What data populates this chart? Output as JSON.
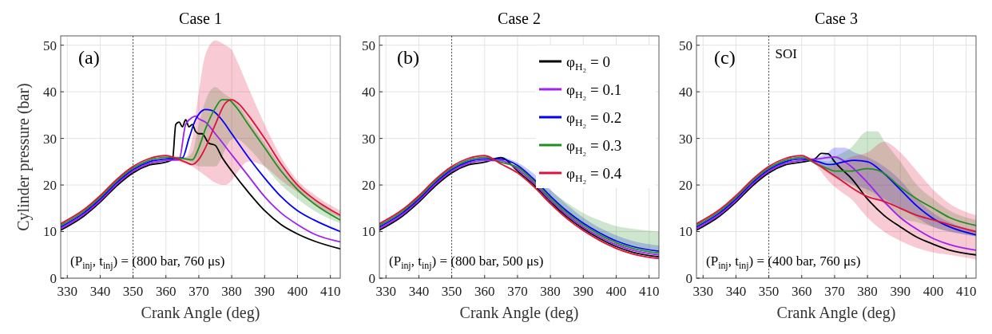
{
  "chart_data": [
    {
      "type": "line",
      "title": "Case 1",
      "xlabel": "Crank Angle (deg)",
      "ylabel": "Cylinder pressure (bar)",
      "annotations": [
        "(a)",
        "(P$_{inj}$, t$_{inj}$) = (800 bar, 760 μs)"
      ],
      "xlim": [
        328,
        413
      ],
      "ylim": [
        0,
        52
      ],
      "xticks": [
        330,
        340,
        350,
        360,
        370,
        380,
        390,
        400,
        410
      ],
      "yticks": [
        0,
        10,
        20,
        30,
        40,
        50
      ],
      "grid": true,
      "line_style": "solid",
      "ref_lines": [
        {
          "axis": "x",
          "value": 350,
          "line_style": "dotted"
        }
      ],
      "series": [
        {
          "color": "#000000",
          "x": [
            328,
            335,
            340,
            345,
            350,
            355,
            360,
            362,
            363,
            364,
            365,
            366,
            367,
            368,
            369,
            370,
            371,
            373,
            375,
            377,
            380,
            385,
            390,
            395,
            400,
            405,
            413
          ],
          "values": [
            10.3,
            13.3,
            16.3,
            19.8,
            22.6,
            24.3,
            24.9,
            25.5,
            33,
            33.5,
            32.5,
            34,
            32.5,
            33,
            31.5,
            31,
            31,
            29,
            28.5,
            26,
            23,
            18.5,
            14.5,
            11.5,
            9.5,
            8,
            6.3
          ]
        },
        {
          "color": "#a020f0",
          "x": [
            328,
            335,
            340,
            345,
            350,
            355,
            360,
            364,
            366,
            368,
            369,
            370,
            372,
            375,
            380,
            385,
            390,
            395,
            400,
            405,
            413
          ],
          "values": [
            10.65,
            13.65,
            16.65,
            20.15,
            22.95,
            24.65,
            25.25,
            25.4,
            33,
            34.5,
            34.8,
            34.2,
            33.5,
            31,
            26.5,
            22,
            17.5,
            14,
            11.5,
            9.5,
            7.8
          ]
        },
        {
          "color": "#0000ff",
          "x": [
            328,
            335,
            340,
            345,
            350,
            355,
            360,
            365,
            367,
            369,
            372,
            374,
            377,
            380,
            385,
            390,
            395,
            400,
            405,
            413
          ],
          "values": [
            11,
            14,
            17,
            20.5,
            23.3,
            25,
            25.6,
            25.8,
            30,
            34,
            36.2,
            36,
            34,
            31,
            26,
            21.5,
            17.5,
            14.5,
            12.5,
            10
          ]
        },
        {
          "color": "#1f8f1f",
          "x": [
            328,
            335,
            340,
            345,
            350,
            355,
            360,
            366,
            368,
            370,
            372,
            375,
            377,
            379,
            381,
            385,
            390,
            395,
            400,
            405,
            413
          ],
          "values": [
            11.35,
            14.35,
            17.35,
            20.85,
            23.65,
            25.35,
            25.95,
            25.6,
            25.4,
            28,
            32,
            36.5,
            38.3,
            38.3,
            37,
            33,
            28,
            23,
            19,
            16,
            12.5
          ],
          "upper": [
            11.35,
            14.35,
            17.35,
            20.85,
            23.65,
            25.35,
            25.95,
            25.9,
            27,
            33,
            38,
            41,
            40,
            39,
            38,
            34,
            29,
            24,
            20,
            17,
            13.3
          ],
          "lower": [
            11.35,
            14.35,
            17.35,
            20.85,
            23.65,
            25.35,
            25.95,
            25.3,
            24.8,
            24,
            24,
            24,
            26,
            29,
            30,
            28,
            24,
            20,
            17,
            14.5,
            11.8
          ]
        },
        {
          "color": "#e0103a",
          "x": [
            328,
            335,
            340,
            345,
            350,
            355,
            360,
            362,
            366,
            368,
            370,
            372,
            375,
            378,
            380,
            382,
            385,
            390,
            395,
            400,
            405,
            413
          ],
          "values": [
            11.7,
            14.7,
            17.7,
            21.2,
            24,
            25.7,
            26.3,
            26,
            24.9,
            24.4,
            25.5,
            28,
            33,
            37.5,
            38.3,
            37.5,
            35,
            30,
            24.5,
            20,
            17,
            13.5
          ],
          "upper": [
            11.7,
            14.7,
            17.7,
            21.2,
            24,
            25.7,
            26.3,
            26.3,
            26,
            30,
            40,
            48,
            51,
            50,
            49,
            46,
            41,
            33,
            26,
            21,
            18,
            14.5
          ],
          "lower": [
            11.7,
            14.7,
            17.7,
            21.2,
            24,
            25.7,
            26.3,
            25.7,
            24.5,
            24,
            23,
            22,
            20.5,
            20,
            21,
            23,
            25,
            24,
            21,
            18.5,
            16,
            13
          ]
        }
      ]
    },
    {
      "type": "line",
      "title": "Case 2",
      "xlabel": "Crank Angle (deg)",
      "annotations": [
        "(b)",
        "(P$_{inj}$, t$_{inj}$) = (800 bar, 500 μs)"
      ],
      "xlim": [
        328,
        413
      ],
      "ylim": [
        0,
        52
      ],
      "xticks": [
        330,
        340,
        350,
        360,
        370,
        380,
        390,
        400,
        410
      ],
      "yticks": [
        0,
        10,
        20,
        30,
        40,
        50
      ],
      "grid": true,
      "line_style": "solid",
      "legend": "top right",
      "ref_lines": [
        {
          "axis": "x",
          "value": 350,
          "line_style": "dotted"
        }
      ],
      "x": [
        328,
        335,
        340,
        345,
        350,
        355,
        360,
        365,
        370,
        375,
        380,
        385,
        390,
        395,
        400,
        405,
        413
      ],
      "series": [
        {
          "name": "φ$_{H₂}$ = 0",
          "color": "#000000",
          "values": [
            10.3,
            13.3,
            16.3,
            19.8,
            22.6,
            24.3,
            24.9,
            25.9,
            23,
            20,
            16.4,
            13.2,
            10.6,
            8.5,
            6.8,
            5.6,
            4.6
          ]
        },
        {
          "name": "φ$_{H₂}$ = 0.1",
          "color": "#a020f0",
          "values": [
            10.65,
            13.65,
            16.65,
            20.15,
            22.95,
            24.65,
            25.25,
            25.2,
            23.4,
            20.4,
            16.8,
            13.6,
            11,
            8.9,
            7.2,
            6,
            5
          ]
        },
        {
          "name": "φ$_{H₂}$ = 0.2",
          "color": "#0000ff",
          "values": [
            11,
            14,
            17,
            20.5,
            23.3,
            25,
            25.6,
            25.55,
            24.2,
            21.2,
            17.6,
            14.4,
            11.8,
            9.7,
            8,
            6.8,
            5.8
          ],
          "upper": [
            11,
            14,
            17,
            20.5,
            23.3,
            25,
            25.6,
            25.9,
            24.8,
            22.4,
            19,
            15.8,
            13,
            10.8,
            9.2,
            8,
            7
          ],
          "lower": [
            11,
            14,
            17,
            20.5,
            23.3,
            25,
            25.6,
            25.55,
            24.2,
            21.2,
            17.6,
            14.4,
            11.8,
            9.7,
            8,
            6.8,
            5.8
          ]
        },
        {
          "name": "φ$_{H₂}$ = 0.3",
          "color": "#1f8f1f",
          "values": [
            11.35,
            14.35,
            17.35,
            20.85,
            23.65,
            25.35,
            25.95,
            24.85,
            23.8,
            20.8,
            17.2,
            14,
            11.4,
            9.3,
            7.6,
            6.4,
            5.4
          ],
          "upper": [
            11.35,
            14.35,
            17.35,
            20.85,
            23.65,
            25.35,
            25.95,
            24.85,
            24,
            21.6,
            18.8,
            16.2,
            14,
            12.4,
            11.2,
            10.6,
            10
          ],
          "lower": [
            11.35,
            14.35,
            17.35,
            20.85,
            23.65,
            25.35,
            25.95,
            24.85,
            23.8,
            20.8,
            17.2,
            14,
            11.4,
            9.3,
            7.6,
            6.4,
            5.4
          ]
        },
        {
          "name": "φ$_{H₂}$ = 0.4",
          "color": "#e0103a",
          "values": [
            11.7,
            14.7,
            17.7,
            21.2,
            24,
            25.7,
            26.3,
            24.5,
            22.6,
            19.6,
            16,
            12.8,
            10.2,
            8.1,
            6.4,
            5.2,
            4.2
          ]
        }
      ]
    },
    {
      "type": "line",
      "title": "Case 3",
      "xlabel": "Crank Angle (deg)",
      "annotations": [
        "(c)",
        "(P$_{inj}$, t$_{inj}$) = (400 bar, 760 μs)"
      ],
      "xlim": [
        328,
        413
      ],
      "ylim": [
        0,
        52
      ],
      "xticks": [
        330,
        340,
        350,
        360,
        370,
        380,
        390,
        400,
        410
      ],
      "yticks": [
        0,
        10,
        20,
        30,
        40,
        50
      ],
      "grid": true,
      "line_style": "solid",
      "ref_lines": [
        {
          "axis": "x",
          "value": 350,
          "line_style": "dotted",
          "label": "SOI"
        }
      ],
      "series": [
        {
          "color": "#000000",
          "x": [
            328,
            335,
            340,
            345,
            350,
            355,
            360,
            364,
            366,
            368,
            370,
            372,
            375,
            380,
            385,
            390,
            395,
            400,
            405,
            413
          ],
          "values": [
            10.3,
            13.3,
            16.3,
            19.8,
            22.6,
            24.3,
            24.9,
            25.6,
            26.8,
            26.7,
            25,
            23.5,
            21.5,
            17,
            13.5,
            11,
            8.8,
            7.3,
            6,
            5
          ]
        },
        {
          "color": "#a020f0",
          "x": [
            328,
            335,
            340,
            345,
            350,
            355,
            360,
            365,
            368,
            370,
            375,
            380,
            385,
            390,
            395,
            400,
            405,
            413
          ],
          "values": [
            10.65,
            13.65,
            16.65,
            20.15,
            22.95,
            24.65,
            25.25,
            25.6,
            25.9,
            26,
            24,
            20.5,
            16.5,
            13,
            10.5,
            8.5,
            7.2,
            6
          ]
        },
        {
          "color": "#0000ff",
          "x": [
            328,
            335,
            340,
            345,
            350,
            355,
            360,
            365,
            368,
            370,
            373,
            376,
            380,
            385,
            390,
            395,
            400,
            405,
            413
          ],
          "values": [
            11,
            14,
            17,
            20.5,
            23.3,
            25,
            25.6,
            25,
            24.4,
            24.5,
            25,
            25.3,
            25,
            22.5,
            19,
            15.5,
            12.8,
            11,
            9.3
          ],
          "upper": [
            11,
            14,
            17,
            20.5,
            23.3,
            25,
            25.6,
            26,
            27,
            28,
            28,
            27,
            26,
            24,
            21,
            17,
            14,
            12,
            10
          ],
          "lower": [
            11,
            14,
            17,
            20.5,
            23.3,
            25,
            25.6,
            24.5,
            23,
            22,
            21,
            20,
            19,
            17,
            15,
            13,
            11,
            10,
            9
          ]
        },
        {
          "color": "#1f8f1f",
          "x": [
            328,
            335,
            340,
            345,
            350,
            355,
            360,
            365,
            368,
            370,
            375,
            380,
            383,
            385,
            390,
            395,
            400,
            405,
            413
          ],
          "values": [
            11.35,
            14.35,
            17.35,
            20.85,
            23.65,
            25.35,
            25.95,
            24.3,
            23.5,
            23,
            23,
            23.5,
            23.2,
            22.5,
            19.5,
            17,
            15,
            13,
            11.3
          ],
          "upper": [
            11.35,
            14.35,
            17.35,
            20.85,
            23.65,
            25.35,
            25.95,
            25.3,
            25,
            26,
            28,
            31.5,
            31.5,
            29.5,
            25,
            20,
            17,
            14.5,
            12.5
          ],
          "lower": [
            11.35,
            14.35,
            17.35,
            20.85,
            23.65,
            25.35,
            25.95,
            24,
            22.5,
            21.5,
            20,
            18,
            17,
            16,
            13,
            12,
            11,
            10,
            9
          ]
        },
        {
          "color": "#e0103a",
          "x": [
            328,
            335,
            340,
            345,
            350,
            355,
            360,
            364,
            368,
            372,
            375,
            380,
            385,
            390,
            395,
            400,
            405,
            413
          ],
          "values": [
            11.7,
            14.7,
            17.7,
            21.2,
            24,
            25.7,
            26.3,
            24.8,
            22.9,
            21,
            19.5,
            17.5,
            16.5,
            15,
            13.5,
            12.5,
            11.5,
            10
          ],
          "upper": [
            11.7,
            14.7,
            17.7,
            21.2,
            24,
            25.7,
            26.3,
            25.5,
            24,
            25,
            26,
            27,
            29.3,
            27,
            23,
            19,
            16,
            13.5
          ],
          "lower": [
            11.7,
            14.7,
            17.7,
            21.2,
            24,
            25.7,
            26.3,
            24.5,
            21,
            18.5,
            17,
            13,
            10,
            8,
            6.5,
            5.5,
            5,
            4
          ]
        }
      ]
    }
  ]
}
